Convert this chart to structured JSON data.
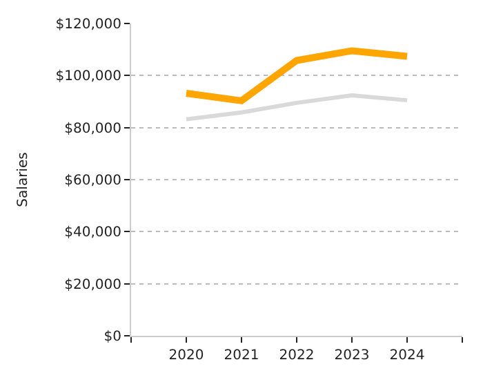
{
  "chart_data": {
    "type": "line",
    "ylabel": "Salaries",
    "x": [
      2020,
      2021,
      2022,
      2023,
      2024
    ],
    "series": [
      {
        "color": "#d9d9d9",
        "values": [
          83200,
          85800,
          89500,
          92400,
          90500
        ]
      },
      {
        "color": "#ffa500",
        "values": [
          93200,
          90300,
          105800,
          109500,
          107400
        ]
      }
    ],
    "xlim": [
      2019,
      2025
    ],
    "xticks": [
      {
        "value": 2019,
        "label": null
      },
      2020,
      2021,
      2022,
      2023,
      2024,
      {
        "value": 2025,
        "label": null
      }
    ],
    "ylim": [
      0,
      120000
    ],
    "yticks": [
      {
        "value": 0,
        "label": "$0"
      },
      {
        "value": 20000,
        "label": "$20,000"
      },
      {
        "value": 40000,
        "label": "$40,000"
      },
      {
        "value": 60000,
        "label": "$60,000"
      },
      {
        "value": 80000,
        "label": "$80,000"
      },
      {
        "value": 100000,
        "label": "$100,000"
      },
      {
        "value": 120000,
        "label": "$120,000"
      }
    ],
    "grid": "y",
    "marker": "none",
    "line_style": "solid"
  }
}
